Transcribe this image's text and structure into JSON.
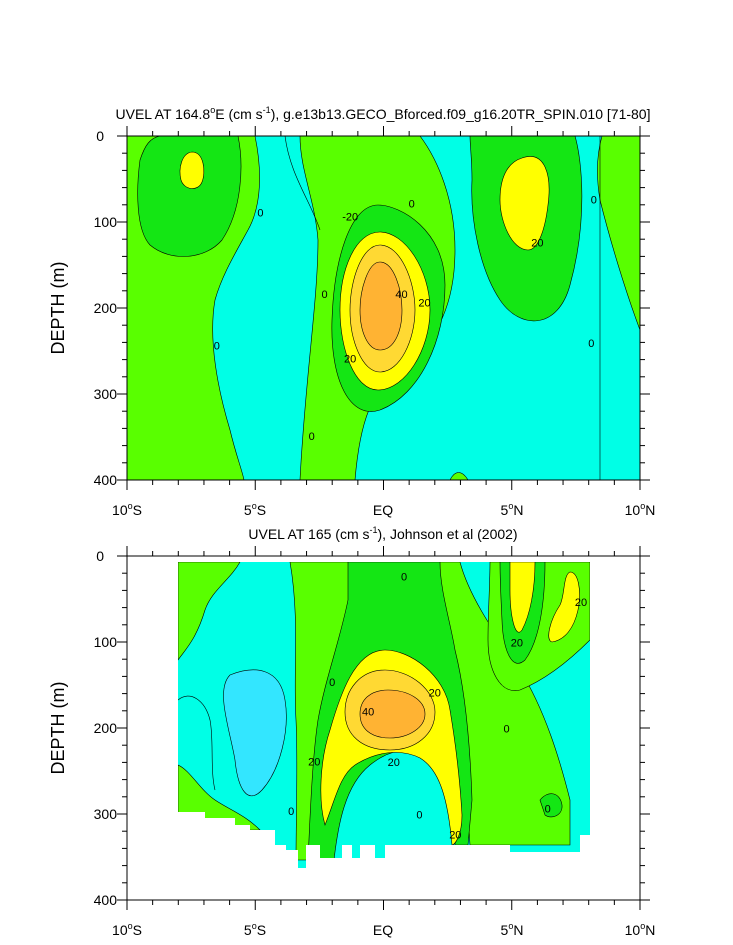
{
  "colors": {
    "below_zero_strong": "#33e6ff",
    "below_zero": "#00ffe6",
    "zero_to_10": "#59ff00",
    "band_10_20": "#14e614",
    "band_20_30": "#ffff00",
    "band_30_40": "#ffd933",
    "band_40_plus": "#ffb333",
    "contour_line": "#000000"
  },
  "chart_data": [
    {
      "type": "heatmap",
      "title_parts": [
        "UVEL AT 164.8",
        "o",
        "E (cm s",
        "-1",
        "), g.e13b13.GECO_Bforced.f09_g16.20TR_SPIN.010 [71-80]"
      ],
      "ylabel": "DEPTH (m)",
      "xlabel": "",
      "x_ticks": [
        {
          "value": -10,
          "label": [
            "10",
            "o",
            "S"
          ]
        },
        {
          "value": -5,
          "label": [
            "5",
            "o",
            "S"
          ]
        },
        {
          "value": 0,
          "label": [
            "EQ"
          ]
        },
        {
          "value": 5,
          "label": [
            "5",
            "o",
            "N"
          ]
        },
        {
          "value": 10,
          "label": [
            "10",
            "o",
            "N"
          ]
        }
      ],
      "y_ticks": [
        0,
        100,
        200,
        300,
        400
      ],
      "xlim": [
        -10,
        10
      ],
      "ylim": [
        0,
        400
      ],
      "y_reversed": true,
      "contour_interval": 10,
      "contour_labels": [
        {
          "text": "0",
          "x": -4.8,
          "y": 90
        },
        {
          "text": "-20",
          "x": -1.3,
          "y": 95
        },
        {
          "text": "0",
          "x": 1.1,
          "y": 80
        },
        {
          "text": "0",
          "x": 8.2,
          "y": 75
        },
        {
          "text": "20",
          "x": 6.0,
          "y": 125
        },
        {
          "text": "0",
          "x": -2.3,
          "y": 185
        },
        {
          "text": "40",
          "x": 0.7,
          "y": 185
        },
        {
          "text": "20",
          "x": 1.6,
          "y": 195
        },
        {
          "text": "0",
          "x": -6.5,
          "y": 245
        },
        {
          "text": "20",
          "x": -1.3,
          "y": 260
        },
        {
          "text": "0",
          "x": 8.1,
          "y": 242
        },
        {
          "text": "0",
          "x": -2.8,
          "y": 350
        }
      ]
    },
    {
      "type": "heatmap",
      "title_parts": [
        "UVEL AT 165 (cm s",
        "-1",
        "), Johnson et al (2002)"
      ],
      "ylabel": "DEPTH (m)",
      "xlabel": "",
      "x_ticks": [
        {
          "value": -10,
          "label": [
            "10",
            "o",
            "S"
          ]
        },
        {
          "value": -5,
          "label": [
            "5",
            "o",
            "S"
          ]
        },
        {
          "value": 0,
          "label": [
            "EQ"
          ]
        },
        {
          "value": 5,
          "label": [
            "5",
            "o",
            "N"
          ]
        },
        {
          "value": 10,
          "label": [
            "10",
            "o",
            "N"
          ]
        }
      ],
      "y_ticks": [
        0,
        100,
        200,
        300,
        400
      ],
      "xlim": [
        -10,
        10
      ],
      "ylim": [
        0,
        400
      ],
      "y_reversed": true,
      "data_extent": {
        "x": [
          -8,
          8
        ],
        "y": [
          8,
          345
        ]
      },
      "contour_interval": 10,
      "contour_labels": [
        {
          "text": "0",
          "x": 0.8,
          "y": 25
        },
        {
          "text": "20",
          "x": 7.7,
          "y": 55
        },
        {
          "text": "20",
          "x": 5.2,
          "y": 102
        },
        {
          "text": "0",
          "x": -2.0,
          "y": 148
        },
        {
          "text": "20",
          "x": 2.0,
          "y": 160
        },
        {
          "text": "40",
          "x": -0.6,
          "y": 182
        },
        {
          "text": "0",
          "x": 4.8,
          "y": 202
        },
        {
          "text": "20",
          "x": -2.7,
          "y": 240
        },
        {
          "text": "20",
          "x": 0.4,
          "y": 241
        },
        {
          "text": "0",
          "x": 6.4,
          "y": 295
        },
        {
          "text": "0",
          "x": -3.6,
          "y": 298
        },
        {
          "text": "0",
          "x": 1.4,
          "y": 302
        },
        {
          "text": "20",
          "x": 2.8,
          "y": 325
        }
      ]
    }
  ]
}
